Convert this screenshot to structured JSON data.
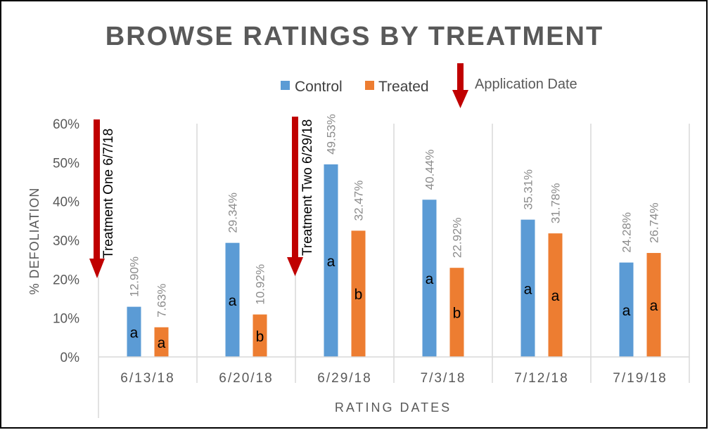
{
  "chart_data": {
    "type": "bar",
    "title": "BROWSE RATINGS BY TREATMENT",
    "xlabel": "RATING DATES",
    "ylabel": "% DEFOLIATION",
    "ylim": [
      0,
      60
    ],
    "yticks": [
      "0%",
      "10%",
      "20%",
      "30%",
      "40%",
      "50%",
      "60%"
    ],
    "categories": [
      "6/13/18",
      "6/20/18",
      "6/29/18",
      "7/3/18",
      "7/12/18",
      "7/19/18"
    ],
    "series": [
      {
        "name": "Control",
        "color": "#5b9bd5",
        "values": [
          12.9,
          29.34,
          49.53,
          40.44,
          35.31,
          24.28
        ],
        "labels": [
          "12.90%",
          "29.34%",
          "49.53%",
          "40.44%",
          "35.31%",
          "24.28%"
        ],
        "letters": [
          "a",
          "a",
          "a",
          "a",
          "a",
          "a"
        ]
      },
      {
        "name": "Treated",
        "color": "#ed7d31",
        "values": [
          7.63,
          10.92,
          32.47,
          22.92,
          31.78,
          26.74
        ],
        "labels": [
          "7.63%",
          "10.92%",
          "32.47%",
          "22.92%",
          "31.78%",
          "26.74%"
        ],
        "letters": [
          "a",
          "b",
          "b",
          "b",
          "a",
          "a"
        ]
      }
    ],
    "legend": {
      "position": "top-center",
      "entries": [
        "Control",
        "Treated"
      ]
    },
    "annotations": [
      {
        "text": "Treatment One 6/7/18",
        "marker": "down-arrow",
        "near": "before 6/13/18"
      },
      {
        "text": "Treatment Two 6/29/18",
        "marker": "down-arrow",
        "near": "before 6/29/18"
      },
      {
        "text": "Application Date",
        "marker": "down-arrow",
        "near": "legend"
      }
    ],
    "grid": "vertical separators between categories",
    "arrow_color": "#c00000"
  }
}
